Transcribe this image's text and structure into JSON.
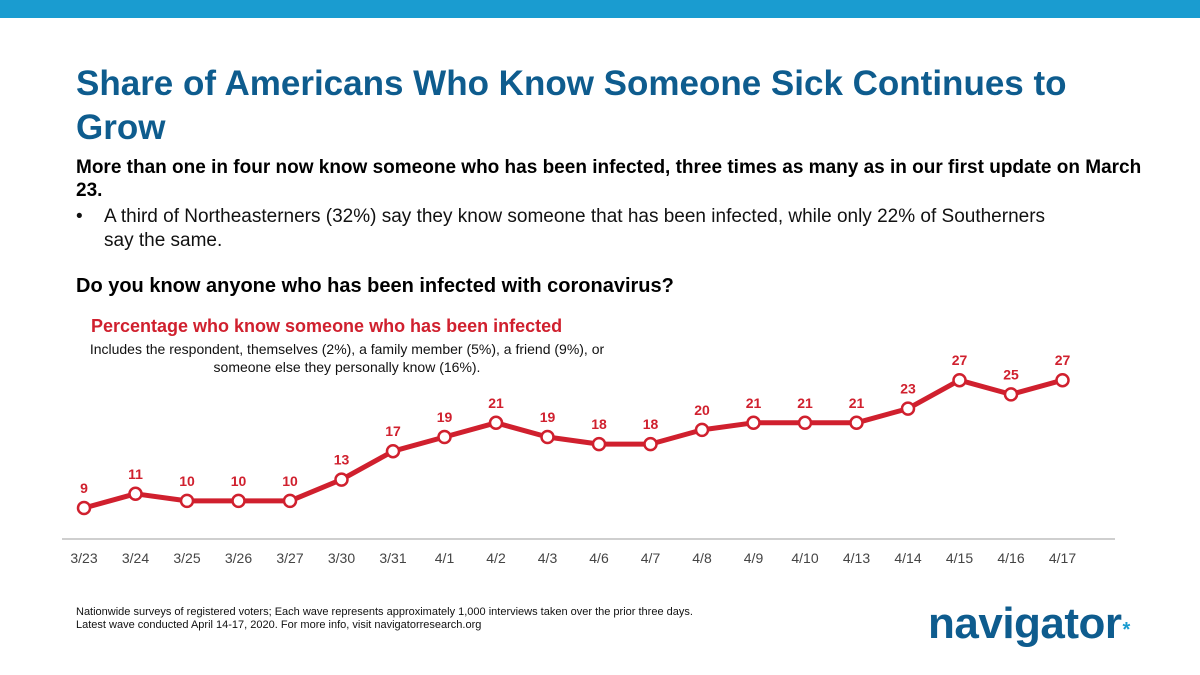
{
  "colors": {
    "top_bar": "#1a9cd0",
    "title": "#0e5c8e",
    "accent_red": "#d0202e",
    "logo": "#0e5c8e",
    "logo_dot": "#1a9cd0",
    "axis": "#bfbfbf",
    "tick_label": "#444444"
  },
  "slide": {
    "title": "Share of Americans Who Know Someone Sick Continues to Grow",
    "subtitle": "More than one in four now know someone who has been infected, three times as many as in our first update on March 23.",
    "bullet_marker": "•",
    "bullet": "A third of Northeasterners (32%) say they know someone that has been infected, while only 22% of Southerners say the same.",
    "question": "Do you know anyone who has been infected with coronavirus?"
  },
  "footnote": {
    "line1": "Nationwide surveys of registered voters; Each wave represents approximately 1,000 interviews taken over the prior three days.",
    "line2": "Latest wave conducted April 14-17, 2020. For more info, visit navigatorresearch.org"
  },
  "logo": {
    "text": "navigator",
    "dot": "*"
  },
  "chart_data": {
    "type": "line",
    "title": "Percentage who know someone who has been infected",
    "subtitle": "Includes the respondent, themselves (2%), a family member (5%), a friend (9%), or someone else they personally know (16%).",
    "categories": [
      "3/23",
      "3/24",
      "3/25",
      "3/26",
      "3/27",
      "3/30",
      "3/31",
      "4/1",
      "4/2",
      "4/3",
      "4/6",
      "4/7",
      "4/8",
      "4/9",
      "4/10",
      "4/13",
      "4/14",
      "4/15",
      "4/16",
      "4/17"
    ],
    "series": [
      {
        "values": [
          9,
          11,
          10,
          10,
          10,
          13,
          17,
          19,
          21,
          19,
          18,
          18,
          20,
          21,
          21,
          21,
          23,
          27,
          25,
          27
        ]
      }
    ],
    "data_labels": true,
    "legend": "none",
    "grid": false
  }
}
